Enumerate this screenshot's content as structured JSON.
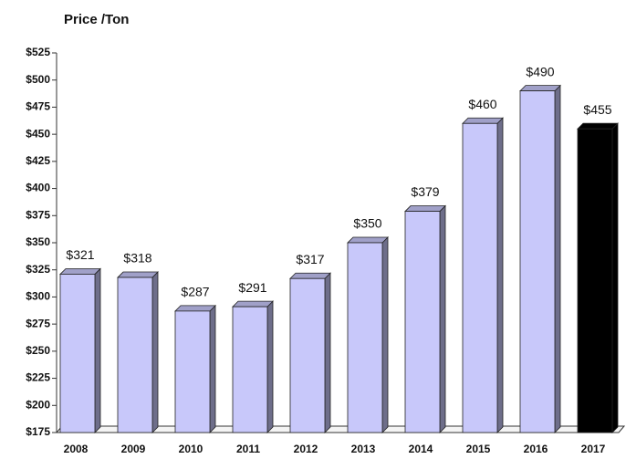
{
  "chart_data": {
    "type": "bar",
    "title": "Price /Ton",
    "categories": [
      "2008",
      "2009",
      "2010",
      "2011",
      "2012",
      "2013",
      "2014",
      "2015",
      "2016",
      "2017"
    ],
    "values": [
      321,
      318,
      287,
      291,
      317,
      350,
      379,
      460,
      490,
      455
    ],
    "value_labels": [
      "$321",
      "$318",
      "$287",
      "$291",
      "$317",
      "$350",
      "$379",
      "$460",
      "$490",
      "$455"
    ],
    "colors": [
      "#c8c8fa",
      "#c8c8fa",
      "#c8c8fa",
      "#c8c8fa",
      "#c8c8fa",
      "#c8c8fa",
      "#c8c8fa",
      "#c8c8fa",
      "#c8c8fa",
      "#000000"
    ],
    "ylim": [
      175,
      525
    ],
    "yticks": [
      {
        "value": 175,
        "label": "$175"
      },
      {
        "value": 200,
        "label": "$200"
      },
      {
        "value": 225,
        "label": "$225"
      },
      {
        "value": 250,
        "label": "$250"
      },
      {
        "value": 275,
        "label": "$275"
      },
      {
        "value": 300,
        "label": "$300"
      },
      {
        "value": 325,
        "label": "$325"
      },
      {
        "value": 350,
        "label": "$350"
      },
      {
        "value": 375,
        "label": "$375"
      },
      {
        "value": 400,
        "label": "$400"
      },
      {
        "value": 425,
        "label": "$425"
      },
      {
        "value": 450,
        "label": "$450"
      },
      {
        "value": 475,
        "label": "$475"
      },
      {
        "value": 500,
        "label": "$500"
      },
      {
        "value": 525,
        "label": "$525"
      }
    ]
  }
}
